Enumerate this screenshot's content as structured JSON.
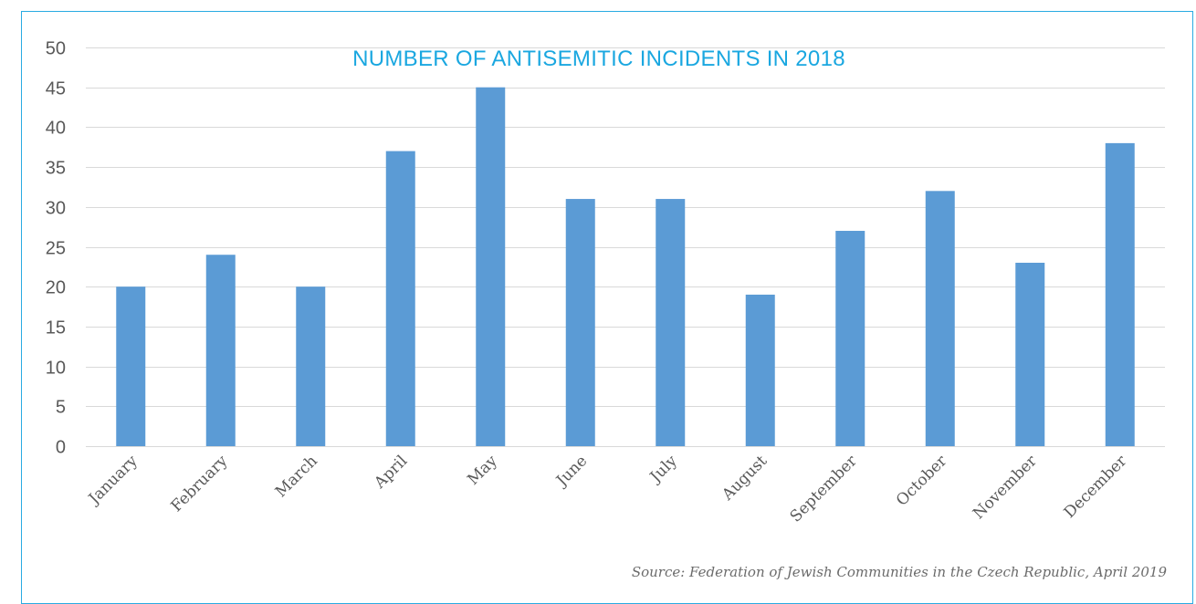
{
  "source": "Source: Federation of Jewish Communities in the Czech Republic, April 2019",
  "colors": {
    "bar": "#5b9bd5",
    "title": "#1aa7e0",
    "frame": "#29abe2",
    "grid": "#d9d9d9",
    "tick_text": "#595959"
  },
  "chart_data": {
    "type": "bar",
    "title": "NUMBER OF ANTISEMITIC INCIDENTS IN 2018",
    "categories": [
      "January",
      "February",
      "March",
      "April",
      "May",
      "June",
      "July",
      "August",
      "September",
      "October",
      "November",
      "December"
    ],
    "values": [
      20,
      24,
      20,
      37,
      45,
      31,
      31,
      19,
      27,
      32,
      23,
      38
    ],
    "ylim": [
      0,
      50
    ],
    "yticks": [
      0,
      5,
      10,
      15,
      20,
      25,
      30,
      35,
      40,
      45,
      50
    ],
    "xlabel": "",
    "ylabel": "",
    "grid": true,
    "legend": "none"
  }
}
